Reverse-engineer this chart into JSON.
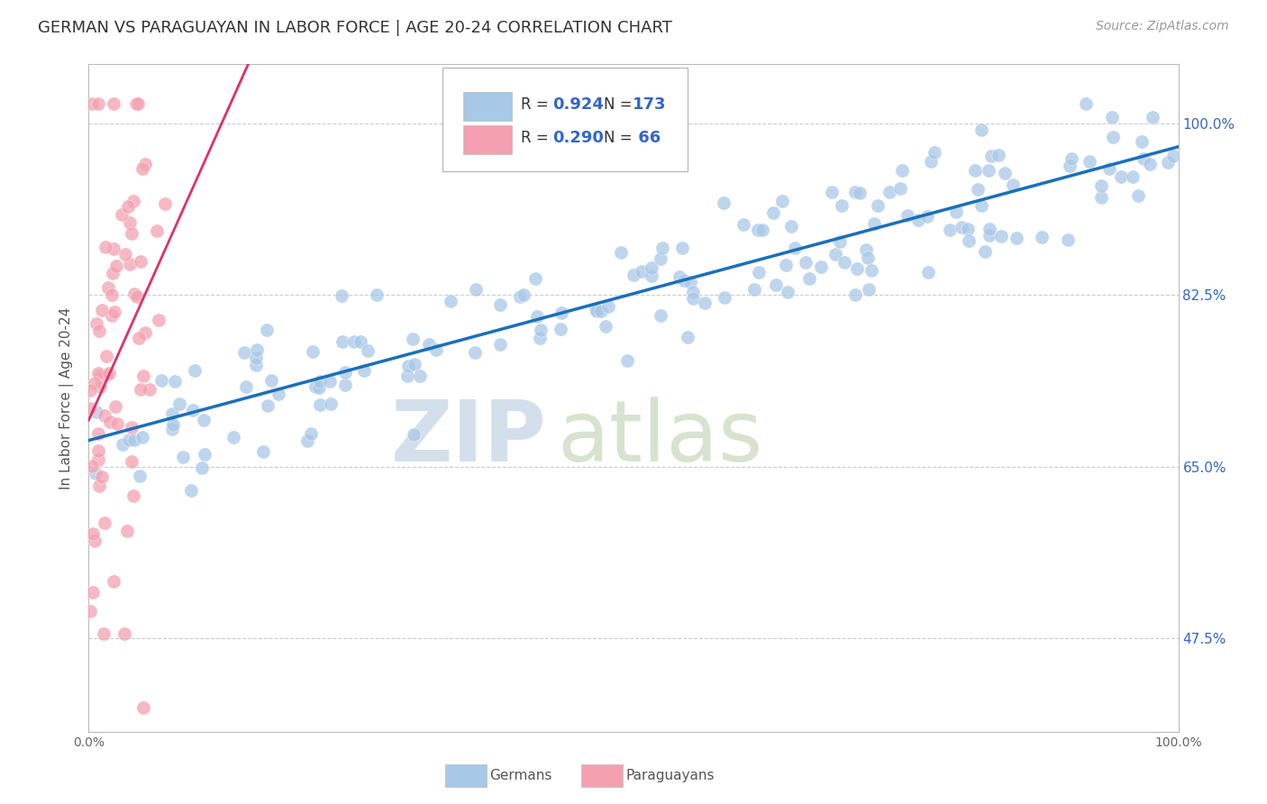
{
  "title": "GERMAN VS PARAGUAYAN IN LABOR FORCE | AGE 20-24 CORRELATION CHART",
  "source": "Source: ZipAtlas.com",
  "ylabel": "In Labor Force | Age 20-24",
  "xlim": [
    0.0,
    1.0
  ],
  "ylim": [
    0.38,
    1.06
  ],
  "yticks": [
    0.475,
    0.65,
    0.825,
    1.0
  ],
  "ytick_labels": [
    "47.5%",
    "65.0%",
    "82.5%",
    "100.0%"
  ],
  "xtick_labels": [
    "0.0%",
    "100.0%"
  ],
  "xticks": [
    0.0,
    1.0
  ],
  "german_R": 0.924,
  "german_N": 173,
  "paraguayan_R": 0.29,
  "paraguayan_N": 66,
  "german_color": "#a8c8e8",
  "paraguayan_color": "#f4a0b0",
  "trend_german_color": "#1a6fbd",
  "trend_paraguayan_color": "#e0306a",
  "watermark_zip": "ZIP",
  "watermark_atlas": "atlas",
  "watermark_color_zip": "#b8cfe0",
  "watermark_color_atlas": "#c8d8c0",
  "background_color": "#ffffff",
  "grid_color": "#cccccc",
  "title_fontsize": 13,
  "axis_label_fontsize": 11,
  "tick_fontsize": 10,
  "source_fontsize": 10,
  "right_tick_color": "#3366cc"
}
